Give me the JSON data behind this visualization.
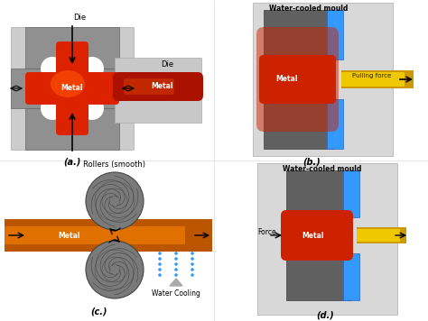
{
  "bg_color": "#ffffff",
  "panel_a_label": "(a.)",
  "panel_b_label": "(b.)",
  "panel_c_label": "(c.)",
  "panel_d_label": "(d.)",
  "label_a_die": "Die",
  "label_a_metal": "Metal",
  "label_b_mould": "Water-cooled mould",
  "label_b_metal": "Metal",
  "label_b_pull": "Pulling force",
  "label_c_rollers": "Rollers (smooth)",
  "label_c_metal": "Metal",
  "label_c_water": "Water Cooling",
  "label_d_mould": "Water-cooled mould",
  "label_d_metal": "Metal",
  "label_d_force": "Force",
  "color_metal_hot": "#cc2200",
  "color_metal_orange": "#ff6600",
  "color_die_gray": "#888888",
  "color_die_dark": "#555555",
  "color_water_blue": "#3399ff",
  "color_yellow_bar": "#ffcc00",
  "color_roller_gray": "#777777"
}
